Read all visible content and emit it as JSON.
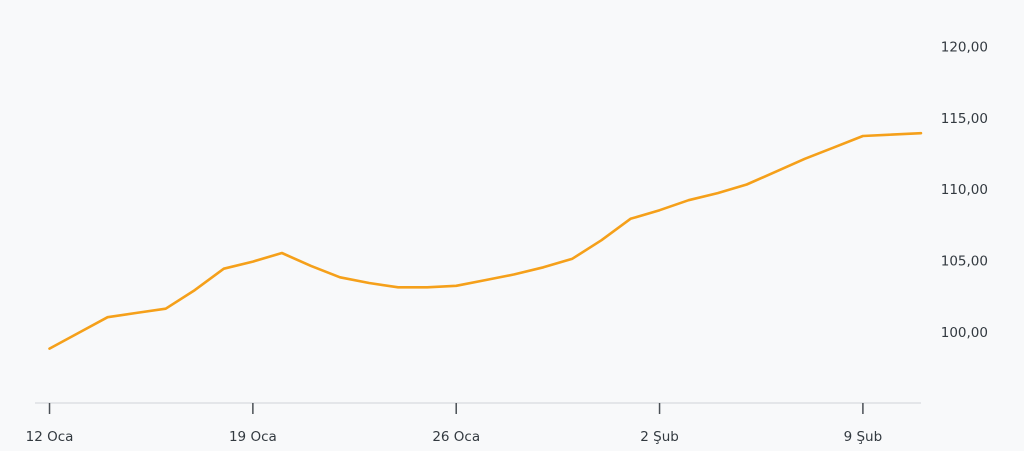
{
  "chart_data": {
    "type": "line",
    "title": "",
    "xlabel": "",
    "ylabel": "",
    "x": [
      "2025-01-12",
      "2025-01-13",
      "2025-01-14",
      "2025-01-15",
      "2025-01-16",
      "2025-01-17",
      "2025-01-18",
      "2025-01-19",
      "2025-01-20",
      "2025-01-21",
      "2025-01-22",
      "2025-01-23",
      "2025-01-24",
      "2025-01-25",
      "2025-01-26",
      "2025-01-27",
      "2025-01-28",
      "2025-01-29",
      "2025-01-30",
      "2025-01-31",
      "2025-02-01",
      "2025-02-02",
      "2025-02-03",
      "2025-02-04",
      "2025-02-05",
      "2025-02-06",
      "2025-02-07",
      "2025-02-08",
      "2025-02-09",
      "2025-02-10",
      "2025-02-11"
    ],
    "series": [
      {
        "values": [
          98.9,
          100.0,
          101.1,
          101.4,
          101.7,
          103.0,
          104.5,
          105.0,
          105.6,
          104.7,
          103.9,
          103.5,
          103.2,
          103.2,
          103.3,
          103.7,
          104.1,
          104.6,
          105.2,
          106.5,
          108.0,
          108.6,
          109.3,
          109.8,
          110.4,
          111.3,
          112.2,
          113.0,
          113.8,
          113.9,
          114.0
        ]
      }
    ],
    "ylim": [
      96.0,
      122.0
    ],
    "y_ticks": [
      "100,00",
      "105,00",
      "110,00",
      "115,00",
      "120,00"
    ],
    "y_tick_values": [
      100,
      105,
      110,
      115,
      120
    ],
    "x_ticks": [
      "12 Oca",
      "19 Oca",
      "26 Oca",
      "2 Şub",
      "9 Şub"
    ],
    "x_tick_values": [
      "2025-01-12",
      "2025-01-19",
      "2025-01-26",
      "2025-02-02",
      "2025-02-09"
    ],
    "grid": false,
    "line_color": "#f5a01a"
  }
}
